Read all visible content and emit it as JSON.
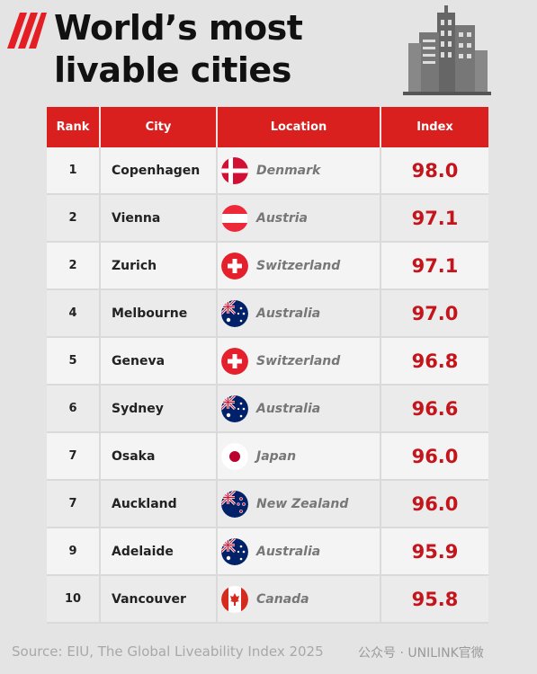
{
  "title_line1": "World’s most",
  "title_line2": "livable cities",
  "headers": {
    "rank": "Rank",
    "city": "City",
    "location": "Location",
    "index": "Index"
  },
  "rows": [
    {
      "rank": "1",
      "city": "Copenhagen",
      "country": "Denmark",
      "flag": "denmark-flag-icon",
      "index": "98.0"
    },
    {
      "rank": "2",
      "city": "Vienna",
      "country": "Austria",
      "flag": "austria-flag-icon",
      "index": "97.1"
    },
    {
      "rank": "2",
      "city": "Zurich",
      "country": "Switzerland",
      "flag": "switzerland-flag-icon",
      "index": "97.1"
    },
    {
      "rank": "4",
      "city": "Melbourne",
      "country": "Australia",
      "flag": "australia-flag-icon",
      "index": "97.0"
    },
    {
      "rank": "5",
      "city": "Geneva",
      "country": "Switzerland",
      "flag": "switzerland-flag-icon",
      "index": "96.8"
    },
    {
      "rank": "6",
      "city": "Sydney",
      "country": "Australia",
      "flag": "australia-flag-icon",
      "index": "96.6"
    },
    {
      "rank": "7",
      "city": "Osaka",
      "country": "Japan",
      "flag": "japan-flag-icon",
      "index": "96.0"
    },
    {
      "rank": "7",
      "city": "Auckland",
      "country": "New Zealand",
      "flag": "new-zealand-flag-icon",
      "index": "96.0"
    },
    {
      "rank": "9",
      "city": "Adelaide",
      "country": "Australia",
      "flag": "australia-flag-icon",
      "index": "95.9"
    },
    {
      "rank": "10",
      "city": "Vancouver",
      "country": "Canada",
      "flag": "canada-flag-icon",
      "index": "95.8"
    }
  ],
  "source": "Source: EIU, The Global Liveability Index 2025",
  "watermark": "公众号 · UNILINK官微",
  "colors": {
    "accent": "#d9201f",
    "index_text": "#c4151c",
    "background": "#e4e4e4"
  }
}
